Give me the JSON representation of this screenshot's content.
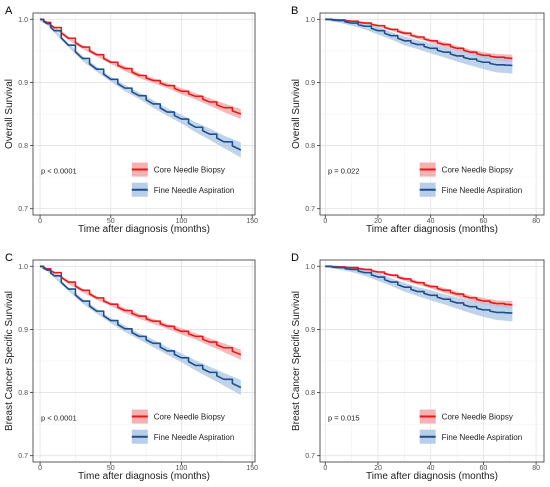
{
  "chart_data": [
    {
      "type": "line",
      "panel_label": "A",
      "xlabel": "Time after diagnosis (months)",
      "ylabel": "Overall Survival",
      "xlim": [
        -5,
        152
      ],
      "ylim": [
        0.69,
        1.01
      ],
      "xticks": [
        "0",
        "50",
        "100",
        "150"
      ],
      "yticks": [
        "0.7",
        "0.8",
        "0.9",
        "1.0"
      ],
      "grid": true,
      "annotation": "p < 0.0001",
      "legend_position": "bottom-right",
      "colors": {
        "red": "#e41a1c",
        "blue": "#1f4e8c",
        "red_band": "#f4a3a3",
        "blue_band": "#a9c6e3"
      },
      "series": [
        {
          "name": "Core Needle Biopsy",
          "color": "#e41a1c",
          "band_color": "#f4a3a3",
          "x": [
            0,
            5,
            10,
            20,
            30,
            40,
            50,
            60,
            70,
            80,
            90,
            100,
            110,
            120,
            130,
            142
          ],
          "y": [
            1.0,
            0.995,
            0.987,
            0.97,
            0.956,
            0.944,
            0.932,
            0.922,
            0.911,
            0.903,
            0.895,
            0.886,
            0.878,
            0.869,
            0.86,
            0.85
          ],
          "band": [
            0.002,
            0.002,
            0.002,
            0.003,
            0.003,
            0.003,
            0.003,
            0.004,
            0.004,
            0.004,
            0.004,
            0.005,
            0.005,
            0.006,
            0.007,
            0.008
          ]
        },
        {
          "name": "Fine Needle Aspiration",
          "color": "#1f4e8c",
          "band_color": "#a9c6e3",
          "x": [
            0,
            5,
            10,
            20,
            30,
            40,
            50,
            60,
            70,
            80,
            90,
            100,
            110,
            120,
            130,
            142
          ],
          "y": [
            1.0,
            0.993,
            0.982,
            0.959,
            0.938,
            0.921,
            0.905,
            0.891,
            0.879,
            0.866,
            0.853,
            0.842,
            0.829,
            0.818,
            0.806,
            0.793
          ],
          "band": [
            0.002,
            0.002,
            0.003,
            0.003,
            0.004,
            0.004,
            0.004,
            0.005,
            0.005,
            0.006,
            0.006,
            0.007,
            0.008,
            0.009,
            0.01,
            0.012
          ]
        }
      ]
    },
    {
      "type": "line",
      "panel_label": "B",
      "xlabel": "Time after diagnosis (months)",
      "ylabel": "Overall Survival",
      "xlim": [
        -2,
        83
      ],
      "ylim": [
        0.69,
        1.01
      ],
      "xticks": [
        "0",
        "20",
        "40",
        "60",
        "80"
      ],
      "yticks": [
        "0.7",
        "0.8",
        "0.9",
        "1.0"
      ],
      "grid": true,
      "annotation": "p = 0.022",
      "legend_position": "bottom-right",
      "series": [
        {
          "name": "Core Needle Biopsy",
          "color": "#e41a1c",
          "band_color": "#f4a3a3",
          "x": [
            0,
            5,
            10,
            15,
            20,
            25,
            30,
            35,
            40,
            45,
            50,
            55,
            60,
            65,
            71
          ],
          "y": [
            1.0,
            0.999,
            0.997,
            0.994,
            0.99,
            0.984,
            0.978,
            0.972,
            0.966,
            0.96,
            0.954,
            0.948,
            0.943,
            0.94,
            0.938
          ],
          "band": [
            0.001,
            0.001,
            0.001,
            0.002,
            0.002,
            0.002,
            0.003,
            0.003,
            0.003,
            0.004,
            0.004,
            0.004,
            0.005,
            0.005,
            0.006
          ]
        },
        {
          "name": "Fine Needle Aspiration",
          "color": "#1f4e8c",
          "band_color": "#a9c6e3",
          "x": [
            0,
            5,
            10,
            15,
            20,
            25,
            30,
            35,
            40,
            45,
            50,
            55,
            60,
            65,
            71
          ],
          "y": [
            1.0,
            0.998,
            0.994,
            0.989,
            0.982,
            0.974,
            0.966,
            0.96,
            0.954,
            0.948,
            0.942,
            0.937,
            0.932,
            0.928,
            0.927
          ],
          "band": [
            0.002,
            0.003,
            0.004,
            0.005,
            0.006,
            0.006,
            0.007,
            0.007,
            0.008,
            0.008,
            0.009,
            0.01,
            0.011,
            0.012,
            0.013
          ]
        }
      ]
    },
    {
      "type": "line",
      "panel_label": "C",
      "xlabel": "Time after diagnosis (months)",
      "ylabel": "Breast Cancer Specific Survival",
      "xlim": [
        -5,
        152
      ],
      "ylim": [
        0.69,
        1.01
      ],
      "xticks": [
        "0",
        "50",
        "100",
        "150"
      ],
      "yticks": [
        "0.7",
        "0.8",
        "0.9",
        "1.0"
      ],
      "grid": true,
      "annotation": "p < 0.0001",
      "legend_position": "bottom-right",
      "series": [
        {
          "name": "Core Needle Biopsy",
          "color": "#e41a1c",
          "band_color": "#f4a3a3",
          "x": [
            0,
            5,
            10,
            20,
            30,
            40,
            50,
            60,
            70,
            80,
            90,
            100,
            110,
            120,
            130,
            142
          ],
          "y": [
            1.0,
            0.996,
            0.99,
            0.975,
            0.962,
            0.95,
            0.94,
            0.93,
            0.921,
            0.913,
            0.905,
            0.897,
            0.889,
            0.88,
            0.871,
            0.86
          ],
          "band": [
            0.002,
            0.002,
            0.002,
            0.003,
            0.003,
            0.003,
            0.003,
            0.004,
            0.004,
            0.004,
            0.004,
            0.005,
            0.005,
            0.006,
            0.007,
            0.008
          ]
        },
        {
          "name": "Fine Needle Aspiration",
          "color": "#1f4e8c",
          "band_color": "#a9c6e3",
          "x": [
            0,
            5,
            10,
            20,
            30,
            40,
            50,
            60,
            70,
            80,
            90,
            100,
            110,
            120,
            130,
            142
          ],
          "y": [
            1.0,
            0.994,
            0.985,
            0.964,
            0.945,
            0.929,
            0.914,
            0.901,
            0.889,
            0.878,
            0.866,
            0.855,
            0.843,
            0.832,
            0.821,
            0.808
          ],
          "band": [
            0.002,
            0.002,
            0.003,
            0.003,
            0.004,
            0.004,
            0.004,
            0.005,
            0.005,
            0.006,
            0.006,
            0.007,
            0.008,
            0.009,
            0.01,
            0.012
          ]
        }
      ]
    },
    {
      "type": "line",
      "panel_label": "D",
      "xlabel": "Time after diagnosis (months)",
      "ylabel": "Breast Cancer Specific Survival",
      "xlim": [
        -2,
        83
      ],
      "ylim": [
        0.69,
        1.01
      ],
      "xticks": [
        "0",
        "20",
        "40",
        "60",
        "80"
      ],
      "yticks": [
        "0.7",
        "0.8",
        "0.9",
        "1.0"
      ],
      "grid": true,
      "annotation": "p = 0.015",
      "legend_position": "bottom-right",
      "series": [
        {
          "name": "Core Needle Biopsy",
          "color": "#e41a1c",
          "band_color": "#f4a3a3",
          "x": [
            0,
            5,
            10,
            15,
            20,
            25,
            30,
            35,
            40,
            45,
            50,
            55,
            60,
            65,
            71
          ],
          "y": [
            1.0,
            0.999,
            0.998,
            0.995,
            0.991,
            0.986,
            0.98,
            0.974,
            0.968,
            0.962,
            0.956,
            0.95,
            0.945,
            0.941,
            0.939
          ],
          "band": [
            0.001,
            0.001,
            0.001,
            0.002,
            0.002,
            0.002,
            0.003,
            0.003,
            0.003,
            0.004,
            0.004,
            0.004,
            0.005,
            0.005,
            0.006
          ]
        },
        {
          "name": "Fine Needle Aspiration",
          "color": "#1f4e8c",
          "band_color": "#a9c6e3",
          "x": [
            0,
            5,
            10,
            15,
            20,
            25,
            30,
            35,
            40,
            45,
            50,
            55,
            60,
            65,
            71
          ],
          "y": [
            1.0,
            0.998,
            0.995,
            0.99,
            0.983,
            0.975,
            0.967,
            0.96,
            0.954,
            0.948,
            0.942,
            0.936,
            0.931,
            0.927,
            0.926
          ],
          "band": [
            0.002,
            0.003,
            0.004,
            0.005,
            0.006,
            0.006,
            0.007,
            0.007,
            0.008,
            0.008,
            0.009,
            0.01,
            0.011,
            0.012,
            0.013
          ]
        }
      ]
    }
  ]
}
